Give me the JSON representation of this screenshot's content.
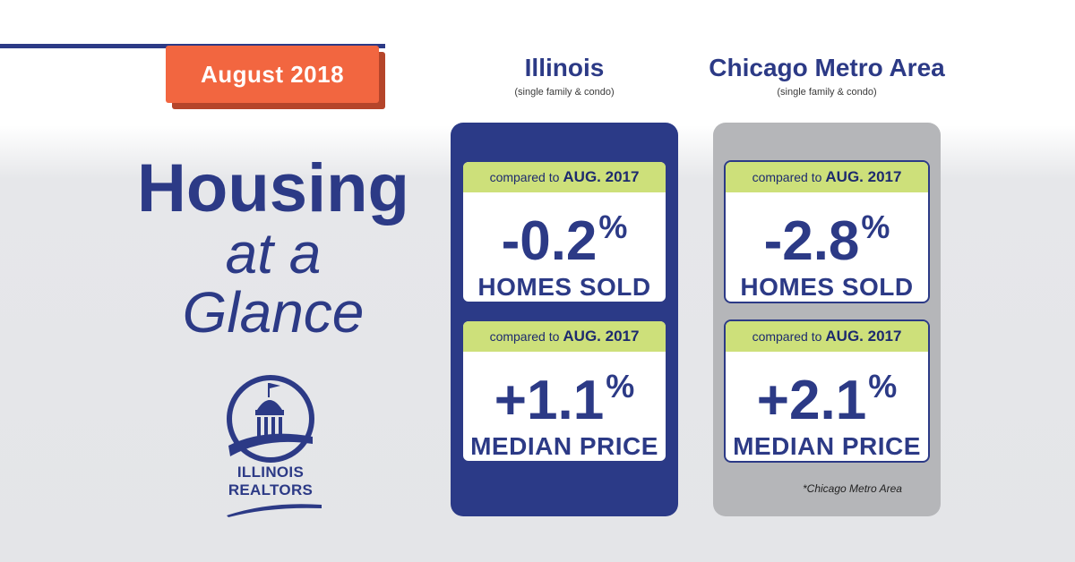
{
  "badge": {
    "date": "August 2018"
  },
  "headline": {
    "line1": "Housing",
    "line2": "at a",
    "line3": "Glance"
  },
  "logo": {
    "line1": "ILLINOIS",
    "line2": "REALTORS"
  },
  "colors": {
    "navy": "#2c3a86",
    "orange": "#f26640",
    "lime": "#cde07a",
    "gray": "#b5b6b9"
  },
  "illinois": {
    "title": "Illinois",
    "subtitle": "(single family & condo)",
    "homes_sold": {
      "compare_prefix": "compared to",
      "compare_period": "AUG. 2017",
      "value": "-0.2",
      "unit": "%",
      "label": "HOMES SOLD"
    },
    "median_price": {
      "compare_prefix": "compared to",
      "compare_period": "AUG. 2017",
      "value": "+1.1",
      "unit": "%",
      "label": "MEDIAN PRICE"
    }
  },
  "chicago": {
    "title": "Chicago Metro Area",
    "subtitle": "(single family & condo)",
    "homes_sold": {
      "compare_prefix": "compared to",
      "compare_period": "AUG. 2017",
      "value": "-2.8",
      "unit": "%",
      "label": "HOMES SOLD"
    },
    "median_price": {
      "compare_prefix": "compared to",
      "compare_period": "AUG. 2017",
      "value": "+2.1",
      "unit": "%",
      "label": "MEDIAN PRICE"
    },
    "footnote": "*Chicago Metro Area"
  }
}
